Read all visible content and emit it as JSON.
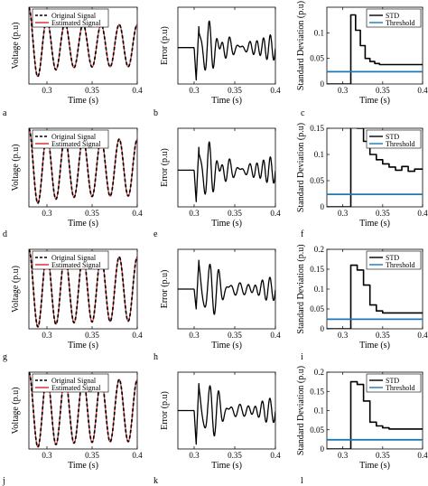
{
  "colors": {
    "original": "#000000",
    "estimated": "#d62728",
    "std": "#000000",
    "threshold": "#1f77b4",
    "error": "#000000"
  },
  "chart_data": [
    {
      "panel": "a",
      "type": "line",
      "xlabel": "Time (s)",
      "ylabel": "Voltage (p.u)",
      "xlim": [
        0.28,
        0.4
      ],
      "xticks": [
        0.3,
        0.35,
        0.4
      ],
      "xticklabels": [
        "0.3",
        "0.35",
        "0.4"
      ],
      "ylim": [
        -1,
        1
      ],
      "yticks": [],
      "yticklabels": [],
      "legend": {
        "placement": "top-left",
        "entries": [
          "Original Signal",
          "Estimated Signal"
        ]
      },
      "series": [
        {
          "name": "Original Signal",
          "style": "dashed",
          "wave": {
            "start": 0.28,
            "freq": 50,
            "amp0": 1.0,
            "amp1": 0.55,
            "decay": 0.35
          }
        },
        {
          "name": "Estimated Signal",
          "style": "solid",
          "wave": {
            "start": 0.28,
            "freq": 50,
            "amp0": 1.0,
            "amp1": 0.55,
            "decay": 0.35
          }
        }
      ]
    },
    {
      "panel": "b",
      "type": "line",
      "xlabel": "Time (s)",
      "ylabel": "Error (p.u)",
      "xlim": [
        0.28,
        0.4
      ],
      "xticks": [
        0.3,
        0.35,
        0.4
      ],
      "xticklabels": [
        "0.3",
        "0.35",
        "0.4"
      ],
      "ylim": [
        -0.45,
        0.5
      ],
      "yticks": [],
      "yticklabels": [],
      "series": [
        {
          "name": "",
          "style": "solid",
          "error": {
            "t0": 0.3,
            "spike_up": 0.3,
            "spike_down": -0.4,
            "amp": 0.15,
            "freq": 120
          }
        }
      ]
    },
    {
      "panel": "c",
      "type": "line",
      "xlabel": "Time (s)",
      "ylabel": "Standard Deviation (p.u)",
      "xlim": [
        0.28,
        0.4
      ],
      "xticks": [
        0.3,
        0.35,
        0.4
      ],
      "xticklabels": [
        "0.3",
        "0.35",
        "0.4"
      ],
      "ylim": [
        0,
        0.15
      ],
      "yticks": [
        0,
        0.05,
        0.1
      ],
      "yticklabels": [
        "0",
        "0.05",
        "0.1"
      ],
      "legend": {
        "placement": "top-right",
        "entries": [
          "STD",
          "Threshold"
        ]
      },
      "series": [
        {
          "name": "STD",
          "style": "step",
          "x": [
            0.28,
            0.31,
            0.31,
            0.316,
            0.316,
            0.322,
            0.322,
            0.328,
            0.328,
            0.334,
            0.334,
            0.34,
            0.34,
            0.346,
            0.346,
            0.4
          ],
          "y": [
            0,
            0,
            0.135,
            0.135,
            0.105,
            0.105,
            0.075,
            0.075,
            0.05,
            0.05,
            0.044,
            0.044,
            0.04,
            0.04,
            0.038,
            0.038
          ]
        },
        {
          "name": "Threshold",
          "style": "hline",
          "y": 0.024
        }
      ]
    },
    {
      "panel": "d",
      "type": "line",
      "xlabel": "Time (s)",
      "ylabel": "Voltage (p.u)",
      "xlim": [
        0.28,
        0.4
      ],
      "xticks": [
        0.3,
        0.35,
        0.4
      ],
      "xticklabels": [
        "0.3",
        "0.35",
        "0.4"
      ],
      "ylim": [
        -1,
        1
      ],
      "yticks": [],
      "yticklabels": [],
      "legend": {
        "placement": "top-left",
        "entries": [
          "Original Signal",
          "Estimated Signal"
        ]
      },
      "series": [
        {
          "name": "Original Signal",
          "style": "dashed",
          "wave": {
            "start": 0.28,
            "freq": 50,
            "amp0": 1.0,
            "amp1": 0.72,
            "decay": 0.5
          }
        },
        {
          "name": "Estimated Signal",
          "style": "solid",
          "wave": {
            "start": 0.28,
            "freq": 50,
            "amp0": 1.0,
            "amp1": 0.72,
            "decay": 0.5
          }
        }
      ]
    },
    {
      "panel": "e",
      "type": "line",
      "xlabel": "Time (s)",
      "ylabel": "Error (p.u)",
      "xlim": [
        0.28,
        0.4
      ],
      "xticks": [
        0.3,
        0.35,
        0.4
      ],
      "xticklabels": [
        "0.3",
        "0.35",
        "0.4"
      ],
      "ylim": [
        -0.35,
        0.4
      ],
      "yticks": [],
      "yticklabels": [],
      "series": [
        {
          "name": "",
          "style": "solid",
          "error": {
            "t0": 0.3,
            "spike_up": 0.25,
            "spike_down": -0.3,
            "amp": 0.12,
            "freq": 120
          }
        }
      ]
    },
    {
      "panel": "f",
      "type": "line",
      "xlabel": "Time (s)",
      "ylabel": "Standard Deviation (p.u)",
      "xlim": [
        0.28,
        0.4
      ],
      "xticks": [
        0.3,
        0.35,
        0.4
      ],
      "xticklabels": [
        "0.3",
        "0.35",
        "0.4"
      ],
      "ylim": [
        0,
        0.15
      ],
      "yticks": [
        0,
        0.05,
        0.1,
        0.15
      ],
      "yticklabels": [
        "0",
        "0.05",
        "0.1",
        "0.15"
      ],
      "legend": {
        "placement": "top-right",
        "entries": [
          "STD",
          "Threshold"
        ]
      },
      "series": [
        {
          "name": "STD",
          "style": "step",
          "x": [
            0.28,
            0.31,
            0.31,
            0.318,
            0.318,
            0.326,
            0.326,
            0.334,
            0.334,
            0.342,
            0.342,
            0.35,
            0.35,
            0.358,
            0.358,
            0.366,
            0.366,
            0.374,
            0.374,
            0.382,
            0.382,
            0.39,
            0.39,
            0.4
          ],
          "y": [
            0,
            0,
            0.158,
            0.158,
            0.15,
            0.15,
            0.125,
            0.125,
            0.1,
            0.1,
            0.09,
            0.09,
            0.082,
            0.082,
            0.076,
            0.076,
            0.07,
            0.07,
            0.077,
            0.077,
            0.068,
            0.068,
            0.072,
            0.072
          ]
        },
        {
          "name": "Threshold",
          "style": "hline",
          "y": 0.024
        }
      ]
    },
    {
      "panel": "g",
      "type": "line",
      "xlabel": "Time (s)",
      "ylabel": "Voltage (p.u)",
      "xlim": [
        0.28,
        0.4
      ],
      "xticks": [
        0.3,
        0.35,
        0.4
      ],
      "xticklabels": [
        "0.3",
        "0.35",
        "0.4"
      ],
      "ylim": [
        -1,
        1
      ],
      "yticks": [],
      "yticklabels": [],
      "legend": {
        "placement": "top-right",
        "entries": [
          "Original Signal",
          "Estimated Signal"
        ]
      },
      "series": [
        {
          "name": "Original Signal",
          "style": "dashed",
          "wave": {
            "start": 0.28,
            "freq": 50,
            "amp0": 1.0,
            "amp1": 0.8,
            "decay": 0.7
          }
        },
        {
          "name": "Estimated Signal",
          "style": "solid",
          "wave": {
            "start": 0.28,
            "freq": 50,
            "amp0": 1.0,
            "amp1": 0.8,
            "decay": 0.7
          }
        }
      ]
    },
    {
      "panel": "h",
      "type": "line",
      "xlabel": "Time (s)",
      "ylabel": "Error (p.u)",
      "xlim": [
        0.28,
        0.4
      ],
      "xticks": [
        0.3,
        0.35,
        0.4
      ],
      "xticklabels": [
        "0.3",
        "0.35",
        "0.4"
      ],
      "ylim": [
        -0.4,
        0.4
      ],
      "yticks": [],
      "yticklabels": [],
      "series": [
        {
          "name": "",
          "style": "solid",
          "error": {
            "t0": 0.3,
            "spike_up": 0.32,
            "spike_down": -0.2,
            "amp": 0.11,
            "freq": 110
          }
        }
      ]
    },
    {
      "panel": "i",
      "type": "line",
      "xlabel": "Time (s)",
      "ylabel": "Standard Deviation (p.u)",
      "xlim": [
        0.28,
        0.4
      ],
      "xticks": [
        0.3,
        0.35,
        0.4
      ],
      "xticklabels": [
        "0.3",
        "0.35",
        "0.4"
      ],
      "ylim": [
        0,
        0.2
      ],
      "yticks": [
        0,
        0.05,
        0.1,
        0.15,
        0.2
      ],
      "yticklabels": [
        "0",
        "0.05",
        "0.1",
        "0.15",
        "0.2"
      ],
      "legend": {
        "placement": "top-right",
        "entries": [
          "STD",
          "Threshold"
        ]
      },
      "series": [
        {
          "name": "STD",
          "style": "step",
          "x": [
            0.28,
            0.31,
            0.31,
            0.318,
            0.318,
            0.326,
            0.326,
            0.334,
            0.334,
            0.342,
            0.342,
            0.35,
            0.35,
            0.4
          ],
          "y": [
            0,
            0,
            0.16,
            0.16,
            0.148,
            0.148,
            0.11,
            0.11,
            0.06,
            0.06,
            0.045,
            0.045,
            0.04,
            0.04
          ]
        },
        {
          "name": "Threshold",
          "style": "hline",
          "y": 0.024
        }
      ]
    },
    {
      "panel": "j",
      "type": "line",
      "xlabel": "Time (s)",
      "ylabel": "Voltage (p.u)",
      "xlim": [
        0.28,
        0.4
      ],
      "xticks": [
        0.3,
        0.35,
        0.4
      ],
      "xticklabels": [
        "0.3",
        "0.35",
        "0.4"
      ],
      "ylim": [
        -1,
        1
      ],
      "yticks": [],
      "yticklabels": [],
      "legend": {
        "placement": "top-right",
        "entries": [
          "Original Signal",
          "Estimated Signal"
        ]
      },
      "series": [
        {
          "name": "Original Signal",
          "style": "dashed",
          "wave": {
            "start": 0.28,
            "freq": 50,
            "amp0": 1.0,
            "amp1": 0.8,
            "decay": 0.7
          }
        },
        {
          "name": "Estimated Signal",
          "style": "solid",
          "wave": {
            "start": 0.28,
            "freq": 50,
            "amp0": 1.0,
            "amp1": 0.8,
            "decay": 0.7
          }
        }
      ]
    },
    {
      "panel": "k",
      "type": "line",
      "xlabel": "Time (s)",
      "ylabel": "Error (p.u)",
      "xlim": [
        0.28,
        0.4
      ],
      "xticks": [
        0.3,
        0.35,
        0.4
      ],
      "xticklabels": [
        "0.3",
        "0.35",
        "0.4"
      ],
      "ylim": [
        -0.4,
        0.4
      ],
      "yticks": [],
      "yticklabels": [],
      "series": [
        {
          "name": "",
          "style": "solid",
          "error": {
            "t0": 0.3,
            "spike_up": 0.32,
            "spike_down": -0.35,
            "amp": 0.12,
            "freq": 110
          }
        }
      ]
    },
    {
      "panel": "l",
      "type": "line",
      "xlabel": "Time (s)",
      "ylabel": "Standard Deviation (p.u)",
      "xlim": [
        0.28,
        0.4
      ],
      "xticks": [
        0.3,
        0.35,
        0.4
      ],
      "xticklabels": [
        "0.3",
        "0.35",
        "0.4"
      ],
      "ylim": [
        0,
        0.2
      ],
      "yticks": [
        0,
        0.05,
        0.1,
        0.15,
        0.2
      ],
      "yticklabels": [
        "0",
        "0.05",
        "0.1",
        "0.15",
        "0.2"
      ],
      "legend": {
        "placement": "top-right",
        "entries": [
          "STD",
          "Threshold"
        ]
      },
      "series": [
        {
          "name": "STD",
          "style": "step",
          "x": [
            0.28,
            0.31,
            0.31,
            0.318,
            0.318,
            0.326,
            0.326,
            0.334,
            0.334,
            0.342,
            0.342,
            0.35,
            0.35,
            0.358,
            0.358,
            0.4
          ],
          "y": [
            0,
            0,
            0.175,
            0.175,
            0.168,
            0.168,
            0.125,
            0.125,
            0.07,
            0.07,
            0.06,
            0.06,
            0.055,
            0.055,
            0.052,
            0.052
          ]
        },
        {
          "name": "Threshold",
          "style": "hline",
          "y": 0.024
        }
      ]
    }
  ]
}
